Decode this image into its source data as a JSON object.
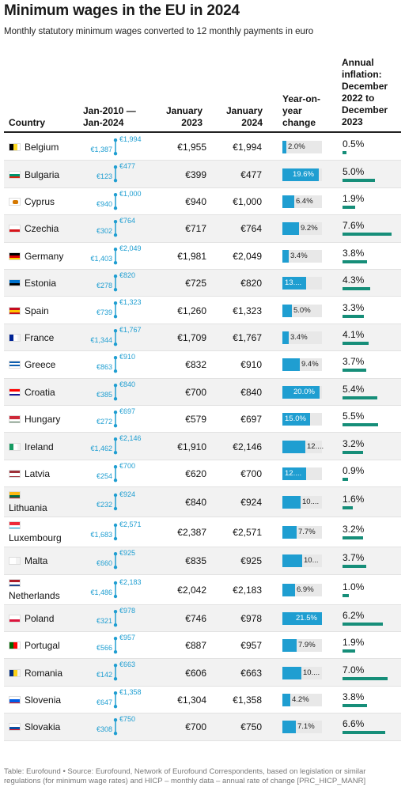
{
  "title": "Minimum wages in the EU in 2024",
  "subtitle": "Monthly statutory minimum wages converted to 12 monthly payments in euro",
  "headers": {
    "country": "Country",
    "range": "Jan-2010 — Jan-2024",
    "jan2023": "January 2023",
    "jan2024": "January 2024",
    "yoy": "Year-on-year change",
    "inflation": "Annual inflation: December 2022 to December 2023"
  },
  "footer": "Table: Eurofound • Source: Eurofound, Network of Eurofound Correspondents, based on legislation or similar regulations (for minimum wage rates) and HICP – monthly data – annual rate of change [PRC_HICP_MANR]",
  "colors": {
    "yoy_bar": "#1f9ed1",
    "inflation_bar": "#168e79",
    "range_dot": "#1f9ed1"
  },
  "chart_data": {
    "type": "table",
    "columns": [
      "Country",
      "Jan-2010 — Jan-2024",
      "January 2023",
      "January 2024",
      "Year-on-year change",
      "Annual inflation: December 2022 to December 2023"
    ],
    "rows": [
      {
        "country": "Belgium",
        "flag": [
          "#000000",
          "#fdda24",
          "#ef3340"
        ],
        "flag_dir": "v",
        "min2010": "€1,387",
        "max2024": "€1,994",
        "jan2023": "€1,955",
        "jan2024": "€1,994",
        "yoy": 2.0,
        "yoy_label": "2.0%",
        "inflation": 0.5,
        "inflation_label": "0.5%"
      },
      {
        "country": "Bulgaria",
        "flag": [
          "#ffffff",
          "#00966e",
          "#d62612"
        ],
        "flag_dir": "h",
        "min2010": "€123",
        "max2024": "€477",
        "jan2023": "€399",
        "jan2024": "€477",
        "yoy": 19.6,
        "yoy_label": "19.6%",
        "inflation": 5.0,
        "inflation_label": "5.0%"
      },
      {
        "country": "Cyprus",
        "flag": [
          "#ffffff"
        ],
        "flag_dir": "h",
        "min2010": "€940",
        "max2024": "€1,000",
        "jan2023": "€940",
        "jan2024": "€1,000",
        "yoy": 6.4,
        "yoy_label": "6.4%",
        "inflation": 1.9,
        "inflation_label": "1.9%"
      },
      {
        "country": "Czechia",
        "flag": [
          "#ffffff",
          "#d7141a"
        ],
        "flag_dir": "h",
        "min2010": "€302",
        "max2024": "€764",
        "jan2023": "€717",
        "jan2024": "€764",
        "yoy": 9.2,
        "yoy_label": "9.2%",
        "inflation": 7.6,
        "inflation_label": "7.6%"
      },
      {
        "country": "Germany",
        "flag": [
          "#000000",
          "#dd0000",
          "#ffce00"
        ],
        "flag_dir": "h",
        "min2010": "€1,403",
        "max2024": "€2,049",
        "jan2023": "€1,981",
        "jan2024": "€2,049",
        "yoy": 3.4,
        "yoy_label": "3.4%",
        "inflation": 3.8,
        "inflation_label": "3.8%"
      },
      {
        "country": "Estonia",
        "flag": [
          "#0072ce",
          "#000000",
          "#ffffff"
        ],
        "flag_dir": "h",
        "min2010": "€278",
        "max2024": "€820",
        "jan2023": "€725",
        "jan2024": "€820",
        "yoy": 13.1,
        "yoy_label": "13....",
        "inflation": 4.3,
        "inflation_label": "4.3%"
      },
      {
        "country": "Spain",
        "flag": [
          "#c60b1e",
          "#ffc400",
          "#c60b1e"
        ],
        "flag_dir": "h",
        "min2010": "€739",
        "max2024": "€1,323",
        "jan2023": "€1,260",
        "jan2024": "€1,323",
        "yoy": 5.0,
        "yoy_label": "5.0%",
        "inflation": 3.3,
        "inflation_label": "3.3%"
      },
      {
        "country": "France",
        "flag": [
          "#002395",
          "#ffffff",
          "#ed2939"
        ],
        "flag_dir": "v",
        "min2010": "€1,344",
        "max2024": "€1,767",
        "jan2023": "€1,709",
        "jan2024": "€1,767",
        "yoy": 3.4,
        "yoy_label": "3.4%",
        "inflation": 4.1,
        "inflation_label": "4.1%"
      },
      {
        "country": "Greece",
        "flag": [
          "#0d5eaf",
          "#ffffff",
          "#0d5eaf",
          "#ffffff",
          "#0d5eaf"
        ],
        "flag_dir": "h",
        "min2010": "€863",
        "max2024": "€910",
        "jan2023": "€832",
        "jan2024": "€910",
        "yoy": 9.4,
        "yoy_label": "9.4%",
        "inflation": 3.7,
        "inflation_label": "3.7%"
      },
      {
        "country": "Croatia",
        "flag": [
          "#ff0000",
          "#ffffff",
          "#171796"
        ],
        "flag_dir": "h",
        "min2010": "€385",
        "max2024": "€840",
        "jan2023": "€700",
        "jan2024": "€840",
        "yoy": 20.0,
        "yoy_label": "20.0%",
        "inflation": 5.4,
        "inflation_label": "5.4%"
      },
      {
        "country": "Hungary",
        "flag": [
          "#ce2939",
          "#ffffff",
          "#477050"
        ],
        "flag_dir": "h",
        "min2010": "€272",
        "max2024": "€697",
        "jan2023": "€579",
        "jan2024": "€697",
        "yoy": 15.0,
        "yoy_label": "15.0%",
        "inflation": 5.5,
        "inflation_label": "5.5%"
      },
      {
        "country": "Ireland",
        "flag": [
          "#169b62",
          "#ffffff",
          "#ff883e"
        ],
        "flag_dir": "v",
        "min2010": "€1,462",
        "max2024": "€2,146",
        "jan2023": "€1,910",
        "jan2024": "€2,146",
        "yoy": 12.4,
        "yoy_label": "12....",
        "inflation": 3.2,
        "inflation_label": "3.2%"
      },
      {
        "country": "Latvia",
        "flag": [
          "#9e3039",
          "#ffffff",
          "#9e3039"
        ],
        "flag_dir": "h",
        "min2010": "€254",
        "max2024": "€700",
        "jan2023": "€620",
        "jan2024": "€700",
        "yoy": 12.9,
        "yoy_label": "12....",
        "inflation": 0.9,
        "inflation_label": "0.9%"
      },
      {
        "country": "Lithuania",
        "flag": [
          "#fdb913",
          "#006a44",
          "#c1272d"
        ],
        "flag_dir": "h",
        "min2010": "€232",
        "max2024": "€924",
        "jan2023": "€840",
        "jan2024": "€924",
        "yoy": 10.0,
        "yoy_label": "10....",
        "inflation": 1.6,
        "inflation_label": "1.6%"
      },
      {
        "country": "Luxembourg",
        "flag": [
          "#ed2939",
          "#ffffff",
          "#00a1de"
        ],
        "flag_dir": "h",
        "min2010": "€1,683",
        "max2024": "€2,571",
        "jan2023": "€2,387",
        "jan2024": "€2,571",
        "yoy": 7.7,
        "yoy_label": "7.7%",
        "inflation": 3.2,
        "inflation_label": "3.2%"
      },
      {
        "country": "Malta",
        "flag": [
          "#ffffff",
          "#cf142b"
        ],
        "flag_dir": "v",
        "min2010": "€660",
        "max2024": "€925",
        "jan2023": "€835",
        "jan2024": "€925",
        "yoy": 10.8,
        "yoy_label": "10...",
        "inflation": 3.7,
        "inflation_label": "3.7%"
      },
      {
        "country": "Netherlands",
        "flag": [
          "#ae1c28",
          "#ffffff",
          "#21468b"
        ],
        "flag_dir": "h",
        "min2010": "€1,486",
        "max2024": "€2,183",
        "jan2023": "€2,042",
        "jan2024": "€2,183",
        "yoy": 6.9,
        "yoy_label": "6.9%",
        "inflation": 1.0,
        "inflation_label": "1.0%"
      },
      {
        "country": "Poland",
        "flag": [
          "#ffffff",
          "#dc143c"
        ],
        "flag_dir": "h",
        "min2010": "€321",
        "max2024": "€978",
        "jan2023": "€746",
        "jan2024": "€978",
        "yoy": 21.5,
        "yoy_label": "21.5%",
        "inflation": 6.2,
        "inflation_label": "6.2%"
      },
      {
        "country": "Portugal",
        "flag": [
          "#006600",
          "#ff0000",
          "#ff0000"
        ],
        "flag_dir": "v",
        "min2010": "€566",
        "max2024": "€957",
        "jan2023": "€887",
        "jan2024": "€957",
        "yoy": 7.9,
        "yoy_label": "7.9%",
        "inflation": 1.9,
        "inflation_label": "1.9%"
      },
      {
        "country": "Romania",
        "flag": [
          "#002b7f",
          "#fcd116",
          "#ce1126"
        ],
        "flag_dir": "v",
        "min2010": "€142",
        "max2024": "€663",
        "jan2023": "€606",
        "jan2024": "€663",
        "yoy": 10.2,
        "yoy_label": "10....",
        "inflation": 7.0,
        "inflation_label": "7.0%"
      },
      {
        "country": "Slovenia",
        "flag": [
          "#ffffff",
          "#005ce5",
          "#ed1c24"
        ],
        "flag_dir": "h",
        "min2010": "€647",
        "max2024": "€1,358",
        "jan2023": "€1,304",
        "jan2024": "€1,358",
        "yoy": 4.2,
        "yoy_label": "4.2%",
        "inflation": 3.8,
        "inflation_label": "3.8%"
      },
      {
        "country": "Slovakia",
        "flag": [
          "#ffffff",
          "#0b4ea2",
          "#ee1c25"
        ],
        "flag_dir": "h",
        "min2010": "€308",
        "max2024": "€750",
        "jan2023": "€700",
        "jan2024": "€750",
        "yoy": 7.1,
        "yoy_label": "7.1%",
        "inflation": 6.6,
        "inflation_label": "6.6%"
      }
    ]
  }
}
